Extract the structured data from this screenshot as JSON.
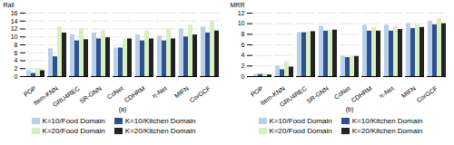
{
  "chart_data": [
    {
      "type": "bar",
      "xlabel": "(a)",
      "ylabel": "Rall",
      "categories": [
        "POP",
        "Item-KNN",
        "GRU4REC",
        "SR-GNN",
        "CoNet",
        "CDHRM",
        "π-Net",
        "MIFN",
        "CorGCF"
      ],
      "series": [
        {
          "name": "K=10/Food Domain",
          "color": "#b8d0e8",
          "values": [
            1.5,
            7.0,
            10.5,
            11.0,
            7.2,
            10.5,
            10.2,
            12.0,
            12.5
          ]
        },
        {
          "name": "K=10/Kitchen Domain",
          "color": "#2e5090",
          "values": [
            0.8,
            5.0,
            9.0,
            9.5,
            7.2,
            9.0,
            9.0,
            10.0,
            11.0
          ]
        },
        {
          "name": "K=20/Food Domain",
          "color": "#d8efc0",
          "values": [
            2.0,
            12.5,
            12.0,
            11.5,
            9.5,
            11.5,
            12.0,
            13.0,
            14.0
          ]
        },
        {
          "name": "K=20/Kitchen Domain",
          "color": "#222222",
          "values": [
            1.5,
            11.0,
            9.3,
            9.8,
            9.5,
            9.5,
            9.5,
            10.5,
            11.5
          ]
        }
      ],
      "ylim": [
        0,
        16
      ],
      "yticks": [
        0,
        2,
        4,
        6,
        8,
        10,
        12,
        14,
        16
      ],
      "grid": true,
      "legend": "bottom"
    },
    {
      "type": "bar",
      "xlabel": "(b)",
      "ylabel": "MRR",
      "categories": [
        "POP",
        "Item-KNN",
        "GRU4REC",
        "SR-GNN",
        "CoNet",
        "CDHRM",
        "π-Net",
        "MIFN",
        "CorGCF"
      ],
      "series": [
        {
          "name": "K=10/Food Domain",
          "color": "#b8d0e8",
          "values": [
            0.4,
            2.0,
            8.3,
            9.5,
            3.8,
            9.7,
            9.7,
            10.0,
            10.5
          ]
        },
        {
          "name": "K=10/Kitchen Domain",
          "color": "#2e5090",
          "values": [
            0.4,
            1.3,
            8.3,
            8.6,
            3.6,
            8.6,
            8.6,
            9.1,
            9.8
          ]
        },
        {
          "name": "K=20/Food Domain",
          "color": "#d8efc0",
          "values": [
            0.5,
            2.8,
            8.4,
            8.7,
            3.9,
            9.3,
            9.5,
            9.8,
            11.0
          ]
        },
        {
          "name": "K=20/Kitchen Domain",
          "color": "#222222",
          "values": [
            0.3,
            1.8,
            8.5,
            8.8,
            3.8,
            8.6,
            8.9,
            9.3,
            10.0
          ]
        }
      ],
      "ylim": [
        0,
        12
      ],
      "yticks": [
        0,
        2,
        4,
        6,
        8,
        10,
        12
      ],
      "grid": true,
      "legend": "bottom"
    }
  ]
}
